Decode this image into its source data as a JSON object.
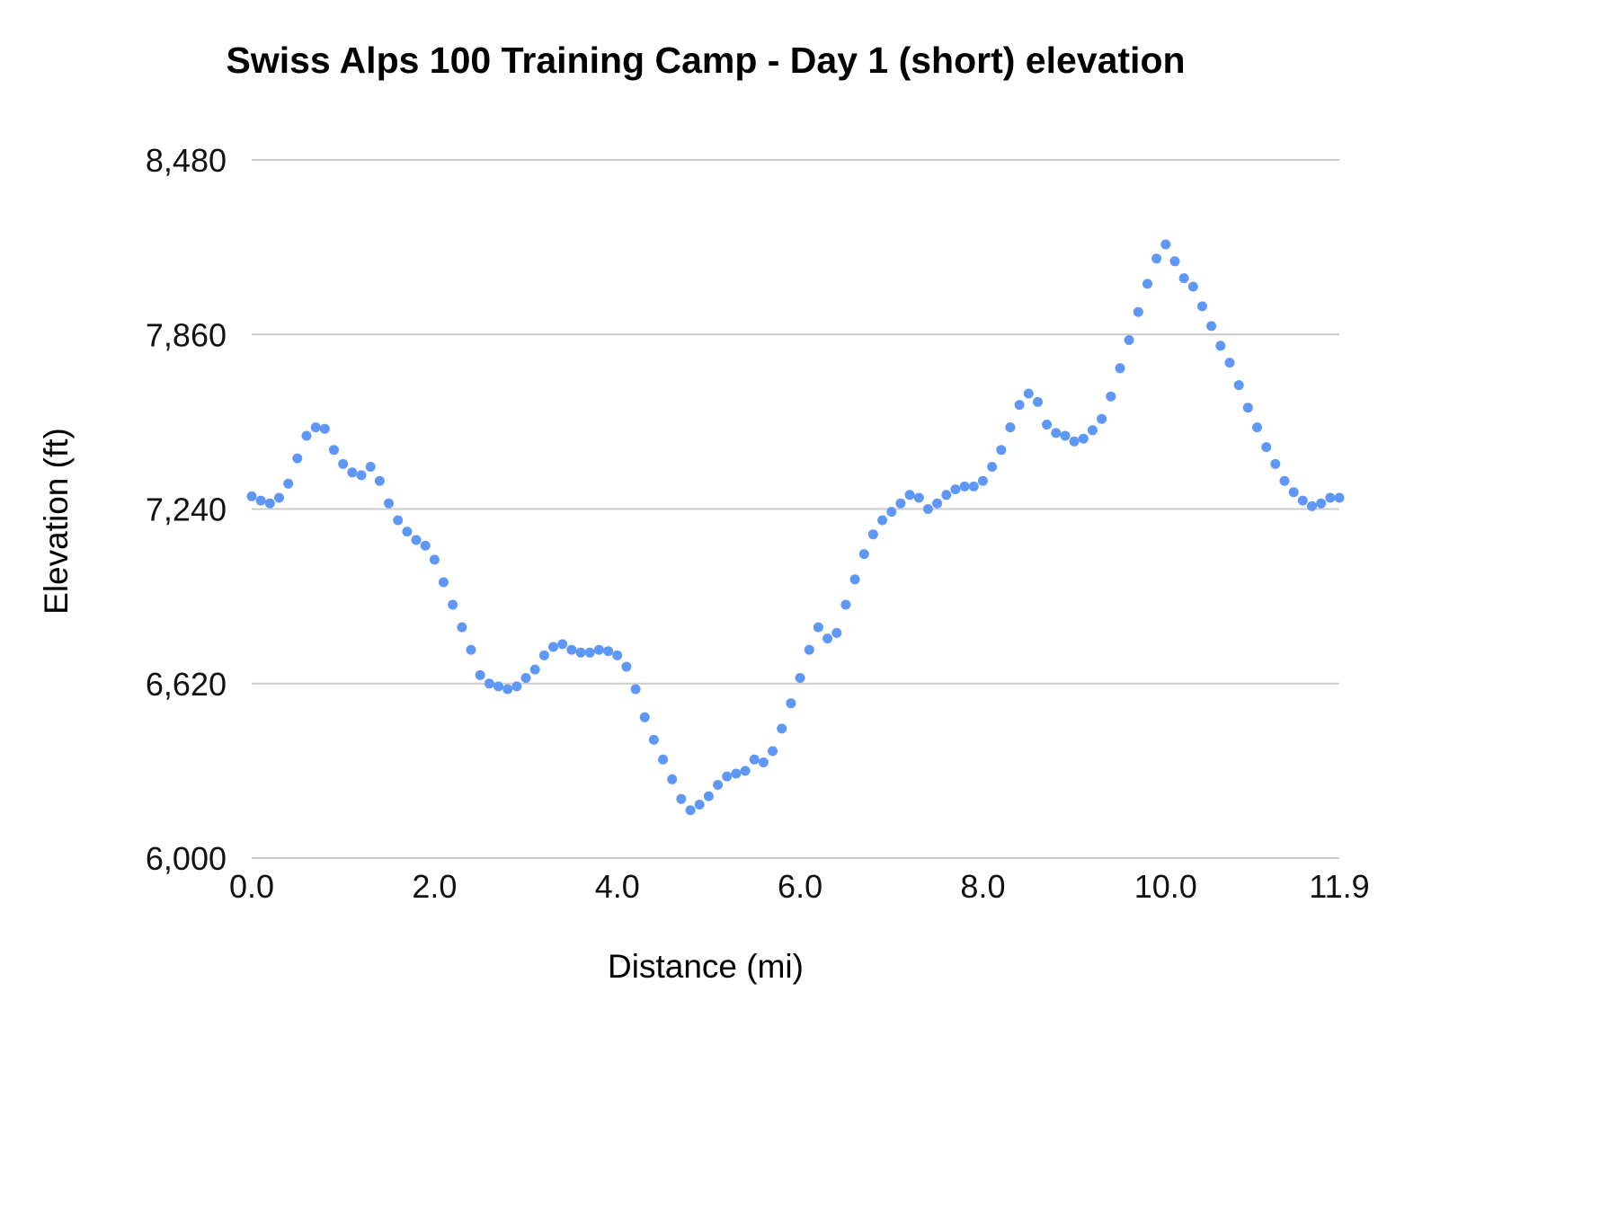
{
  "chart_data": {
    "type": "scatter",
    "title": "Swiss Alps 100 Training Camp - Day 1 (short) elevation",
    "xlabel": "Distance (mi)",
    "ylabel": "Elevation (ft)",
    "xlim": [
      0,
      11.9
    ],
    "ylim": [
      6000,
      8480
    ],
    "grid": "horizontal",
    "legend": "none",
    "point_color": "#5e97f6",
    "grid_color": "#cccccc",
    "x_ticks": [
      0.0,
      2.0,
      4.0,
      6.0,
      8.0,
      10.0,
      11.9
    ],
    "x_tick_labels": [
      "0.0",
      "2.0",
      "4.0",
      "6.0",
      "8.0",
      "10.0",
      "11.9"
    ],
    "y_ticks": [
      6000,
      6620,
      7240,
      7860,
      8480
    ],
    "y_tick_labels": [
      "6,000",
      "6,620",
      "7,240",
      "7,860",
      "8,480"
    ],
    "x": [
      0.0,
      0.1,
      0.2,
      0.3,
      0.4,
      0.5,
      0.6,
      0.7,
      0.8,
      0.9,
      1.0,
      1.1,
      1.2,
      1.3,
      1.4,
      1.5,
      1.6,
      1.7,
      1.8,
      1.9,
      2.0,
      2.1,
      2.2,
      2.3,
      2.4,
      2.5,
      2.6,
      2.7,
      2.8,
      2.9,
      3.0,
      3.1,
      3.2,
      3.3,
      3.4,
      3.5,
      3.6,
      3.7,
      3.8,
      3.9,
      4.0,
      4.1,
      4.2,
      4.3,
      4.4,
      4.5,
      4.6,
      4.7,
      4.8,
      4.9,
      5.0,
      5.1,
      5.2,
      5.3,
      5.4,
      5.5,
      5.6,
      5.7,
      5.8,
      5.9,
      6.0,
      6.1,
      6.2,
      6.3,
      6.4,
      6.5,
      6.6,
      6.7,
      6.8,
      6.9,
      7.0,
      7.1,
      7.2,
      7.3,
      7.4,
      7.5,
      7.6,
      7.7,
      7.8,
      7.9,
      8.0,
      8.1,
      8.2,
      8.3,
      8.4,
      8.5,
      8.6,
      8.7,
      8.8,
      8.9,
      9.0,
      9.1,
      9.2,
      9.3,
      9.4,
      9.5,
      9.6,
      9.7,
      9.8,
      9.9,
      10.0,
      10.1,
      10.2,
      10.3,
      10.4,
      10.5,
      10.6,
      10.7,
      10.8,
      10.9,
      11.0,
      11.1,
      11.2,
      11.3,
      11.4,
      11.5,
      11.6,
      11.7,
      11.8,
      11.9
    ],
    "y": [
      7285,
      7270,
      7260,
      7280,
      7330,
      7420,
      7500,
      7530,
      7525,
      7450,
      7400,
      7370,
      7360,
      7390,
      7340,
      7260,
      7200,
      7160,
      7130,
      7110,
      7060,
      6980,
      6900,
      6820,
      6740,
      6650,
      6620,
      6610,
      6600,
      6610,
      6640,
      6670,
      6720,
      6750,
      6760,
      6740,
      6730,
      6730,
      6740,
      6735,
      6720,
      6680,
      6600,
      6500,
      6420,
      6350,
      6280,
      6210,
      6170,
      6190,
      6220,
      6260,
      6290,
      6300,
      6310,
      6350,
      6340,
      6380,
      6460,
      6550,
      6640,
      6740,
      6820,
      6780,
      6800,
      6900,
      6990,
      7080,
      7150,
      7200,
      7230,
      7260,
      7290,
      7280,
      7240,
      7260,
      7290,
      7310,
      7320,
      7320,
      7340,
      7390,
      7450,
      7530,
      7610,
      7650,
      7620,
      7540,
      7510,
      7500,
      7480,
      7490,
      7520,
      7560,
      7640,
      7740,
      7840,
      7940,
      8040,
      8130,
      8180,
      8120,
      8060,
      8030,
      7960,
      7890,
      7820,
      7760,
      7680,
      7600,
      7530,
      7460,
      7400,
      7340,
      7300,
      7270,
      7250,
      7260,
      7280,
      7280
    ]
  }
}
